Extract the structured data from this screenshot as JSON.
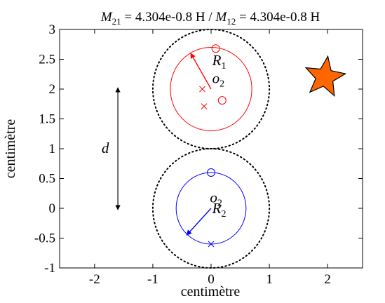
{
  "figure": {
    "title_parts": {
      "m21_sym": "M",
      "m21_sub": "21",
      "m21_val": " = 4.304e-0.8 H / ",
      "m12_sym": "M",
      "m12_sub": "12",
      "m12_val": " = 4.304e-0.8 H"
    },
    "xlabel": "centimètre",
    "ylabel": "centimètre",
    "xlim": [
      -2.6,
      2.6
    ],
    "ylim": [
      -1,
      3
    ],
    "xticks": [
      {
        "v": -2,
        "label": "-2"
      },
      {
        "v": -1,
        "label": "-1"
      },
      {
        "v": 0,
        "label": "0"
      },
      {
        "v": 1,
        "label": "1"
      },
      {
        "v": 2,
        "label": "2"
      }
    ],
    "yticks": [
      {
        "v": -1,
        "label": "-1"
      },
      {
        "v": -0.5,
        "label": "-0.5"
      },
      {
        "v": 0,
        "label": "0"
      },
      {
        "v": 0.5,
        "label": "0.5"
      },
      {
        "v": 1,
        "label": "1"
      },
      {
        "v": 1.5,
        "label": "1.5"
      },
      {
        "v": 2,
        "label": "2"
      },
      {
        "v": 2.5,
        "label": "2.5"
      },
      {
        "v": 3,
        "label": "3"
      }
    ],
    "colors": {
      "loop1": "#ff0000",
      "loop2": "#0000ff",
      "star_fill": "#ff6600",
      "dotted": "#000000"
    },
    "loop1": {
      "center": [
        0,
        2
      ],
      "radius": 0.7,
      "dotted_radius": 1.0,
      "circle_marks": [
        [
          0.08,
          2.68
        ],
        [
          0.19,
          1.81
        ]
      ],
      "x_marks": [
        [
          -0.15,
          2.0
        ],
        [
          -0.12,
          1.71
        ]
      ],
      "arrow_end": [
        -0.35,
        2.6
      ],
      "r_sym": "R",
      "r_sub": "1",
      "r_pos": [
        0.02,
        2.4
      ],
      "o_sym": "o",
      "o_sub": "2",
      "o_pos": [
        0.02,
        2.1
      ]
    },
    "loop2": {
      "center": [
        0,
        0
      ],
      "radius": 0.6,
      "dotted_radius": 1.0,
      "circle_marks": [
        [
          0.0,
          0.6
        ]
      ],
      "x_marks": [
        [
          0.0,
          -0.6
        ]
      ],
      "arrow_end": [
        -0.42,
        -0.45
      ],
      "r_sym": "R",
      "r_sub": "2",
      "r_pos": [
        0.02,
        -0.08
      ],
      "o_sym": "o",
      "o_sub": "2",
      "o_pos": [
        -0.02,
        0.1
      ]
    },
    "separation": {
      "label": "d",
      "x": -1.6,
      "y1": 0,
      "y2": 2
    },
    "star": {
      "x": 1.95,
      "y": 2.2
    }
  }
}
